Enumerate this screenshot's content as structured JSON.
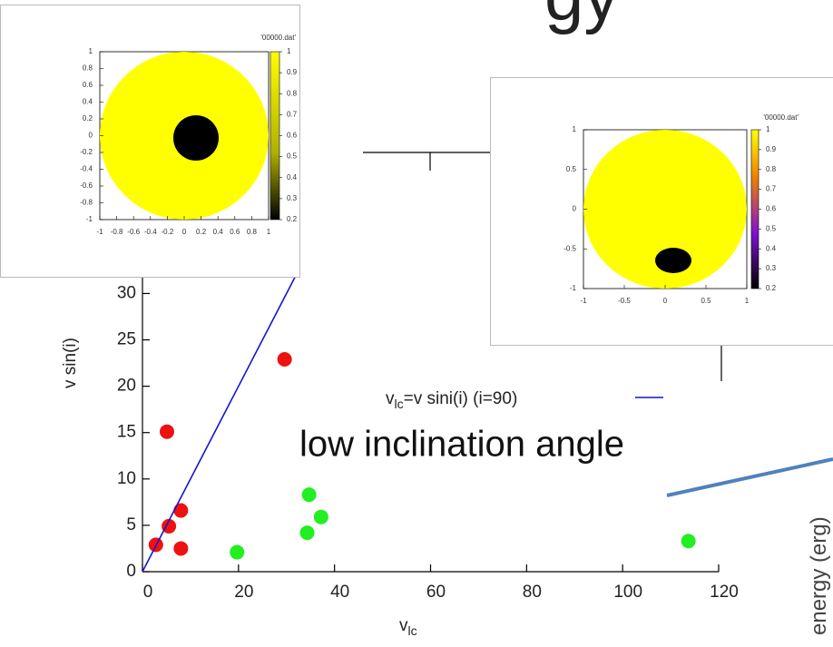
{
  "slide_title_fragment": "gy",
  "side_label": "energy (erg)",
  "annotation": "low inclination angle",
  "chart_data": [
    {
      "type": "scatter",
      "x_label": [
        "v",
        "lc"
      ],
      "y_label": "v sin(i)",
      "xlim": [
        0,
        120
      ],
      "ylim": [
        0,
        32
      ],
      "xticks": [
        0,
        20,
        40,
        60,
        80,
        100,
        120
      ],
      "yticks": [
        0,
        5,
        10,
        15,
        20,
        25,
        30
      ],
      "legend_label": [
        "v",
        "lc",
        "=v sini(i) (i=90)"
      ],
      "series": [
        {
          "type": "points",
          "color": "#ee1111",
          "x": [
            2.8,
            5.5,
            8,
            8,
            5.1,
            29.6
          ],
          "values": [
            2.9,
            4.9,
            6.6,
            2.5,
            15.1,
            22.9
          ]
        },
        {
          "type": "points",
          "color": "#22ee22",
          "x": [
            19.7,
            34.3,
            34.7,
            37.2,
            113.7
          ],
          "values": [
            2.1,
            4.2,
            8.3,
            5.9,
            3.3
          ]
        },
        {
          "type": "line",
          "color": "#1515cc",
          "x": [
            0,
            32
          ],
          "values": [
            0,
            32
          ]
        }
      ]
    },
    {
      "type": "heatmap",
      "title": "'00000.dat'",
      "xlim": [
        -1,
        1
      ],
      "ylim": [
        -1,
        1
      ],
      "xticks": [
        -1,
        -0.8,
        -0.6,
        -0.4,
        -0.2,
        0,
        0.2,
        0.4,
        0.6,
        0.8,
        1
      ],
      "yticks": [
        1,
        0.8,
        0.6,
        0.4,
        0.2,
        0,
        -0.2,
        -0.4,
        -0.6,
        -0.8,
        -1
      ],
      "clim": [
        0.2,
        1
      ],
      "cticks": [
        1,
        0.9,
        0.8,
        0.7,
        0.6,
        0.5,
        0.4,
        0.3,
        0.2
      ]
    },
    {
      "type": "heatmap",
      "title": "'00000.dat'",
      "xlim": [
        -1,
        1
      ],
      "ylim": [
        -1,
        1
      ],
      "xticks": [
        -1,
        -0.5,
        0,
        0.5,
        1
      ],
      "yticks": [
        1,
        0.5,
        0,
        -0.5,
        -1
      ],
      "clim": [
        0.2,
        1
      ],
      "cticks": [
        1,
        0.9,
        0.8,
        0.7,
        0.6,
        0.5,
        0.4,
        0.3,
        0.2
      ]
    }
  ]
}
